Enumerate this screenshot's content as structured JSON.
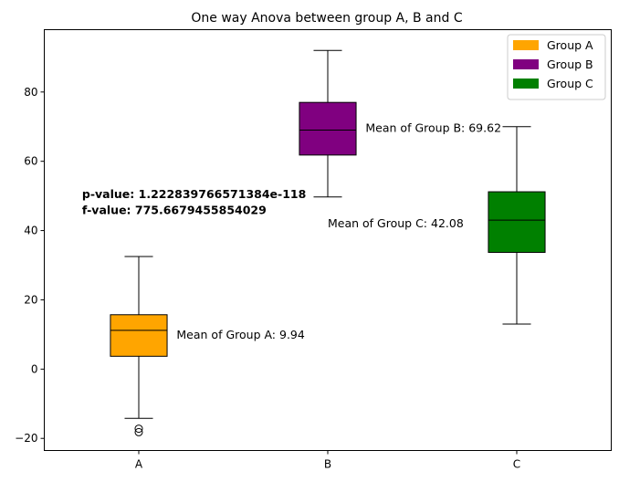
{
  "chart_data": {
    "type": "box",
    "title": "One way Anova between group A, B and C",
    "xlabel": "",
    "ylabel": "",
    "ylim": [
      -23.5,
      98
    ],
    "yticks": [
      -20,
      0,
      20,
      40,
      60,
      80
    ],
    "categories": [
      "A",
      "B",
      "C"
    ],
    "colors": {
      "A": "#ffa500",
      "B": "#800080",
      "C": "#008000"
    },
    "boxes": [
      {
        "category": "A",
        "whisker_low": -14.2,
        "q1": 3.7,
        "median": 11.2,
        "q3": 15.7,
        "whisker_high": 32.5,
        "outliers": [
          -17.2,
          -18.2
        ]
      },
      {
        "category": "B",
        "whisker_low": 49.7,
        "q1": 61.8,
        "median": 69.0,
        "q3": 77.0,
        "whisker_high": 92.0,
        "outliers": []
      },
      {
        "category": "C",
        "whisker_low": 13.0,
        "q1": 33.7,
        "median": 43.0,
        "q3": 51.2,
        "whisker_high": 70.0,
        "outliers": []
      }
    ],
    "annotations": [
      {
        "text": "Mean of Group A: 9.94",
        "x": 1.2,
        "y": 9.94
      },
      {
        "text": "Mean of Group B: 69.62",
        "x": 2.2,
        "y": 69.62
      },
      {
        "text": "Mean of Group C: 42.08",
        "x": 2.0,
        "y": 42.08
      }
    ],
    "stats": {
      "p_value_text": "p-value: 1.222839766571384e-118",
      "f_value_text": "f-value: 775.6679455854029",
      "x": 0.7,
      "y_p": 50.5,
      "y_f": 46.0
    },
    "legend": {
      "placement": "top-right",
      "entries": [
        {
          "label": "Group A",
          "color": "#ffa500"
        },
        {
          "label": "Group B",
          "color": "#800080"
        },
        {
          "label": "Group C",
          "color": "#008000"
        }
      ]
    },
    "grid": false
  }
}
